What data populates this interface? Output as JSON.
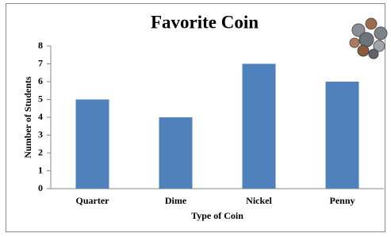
{
  "chart_data": {
    "type": "bar",
    "title": "Favorite Coin",
    "x_label": "Type of Coin",
    "y_label": "Number of Students",
    "categories": [
      "Quarter",
      "Dime",
      "Nickel",
      "Penny"
    ],
    "values": [
      5,
      4,
      7,
      6
    ],
    "color": "#4f81bd",
    "ylim": [
      0,
      8
    ],
    "yticks": [
      0,
      1,
      2,
      3,
      4,
      5,
      6,
      7,
      8
    ],
    "grid": false
  }
}
